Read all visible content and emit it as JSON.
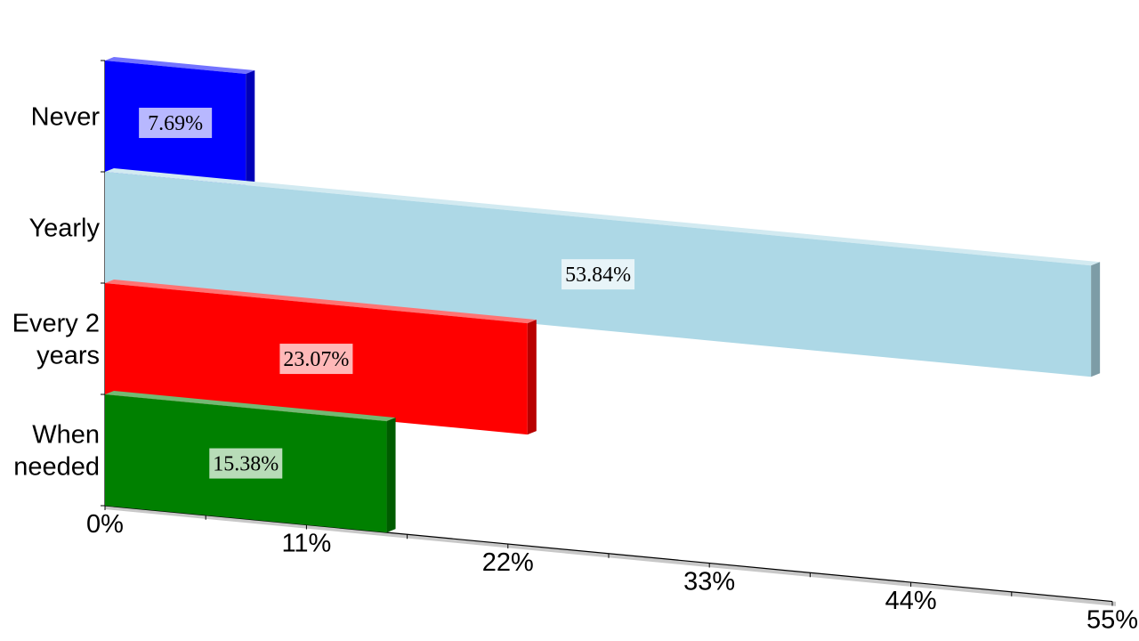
{
  "chart_data": {
    "type": "bar",
    "orientation": "horizontal",
    "perspective_3d": true,
    "title": "",
    "xlabel": "",
    "ylabel": "",
    "categories": [
      "Never",
      "Yearly",
      "Every 2 years",
      "When needed"
    ],
    "category_labels": [
      [
        "Never"
      ],
      [
        "Yearly"
      ],
      [
        "Every 2",
        "years"
      ],
      [
        "When",
        "needed"
      ]
    ],
    "values": [
      7.69,
      53.84,
      23.07,
      15.38
    ],
    "data_labels": [
      "7.69%",
      "53.84%",
      "23.07%",
      "15.38%"
    ],
    "colors": [
      "#0000ff",
      "#add8e6",
      "#ff0000",
      "#008000"
    ],
    "xlim": [
      0,
      55
    ],
    "x_ticks": [
      0,
      11,
      22,
      33,
      44,
      55
    ],
    "x_tick_labels": [
      "0%",
      "11%",
      "22%",
      "33%",
      "44%",
      "55%"
    ],
    "grid": false,
    "legend": "none"
  }
}
